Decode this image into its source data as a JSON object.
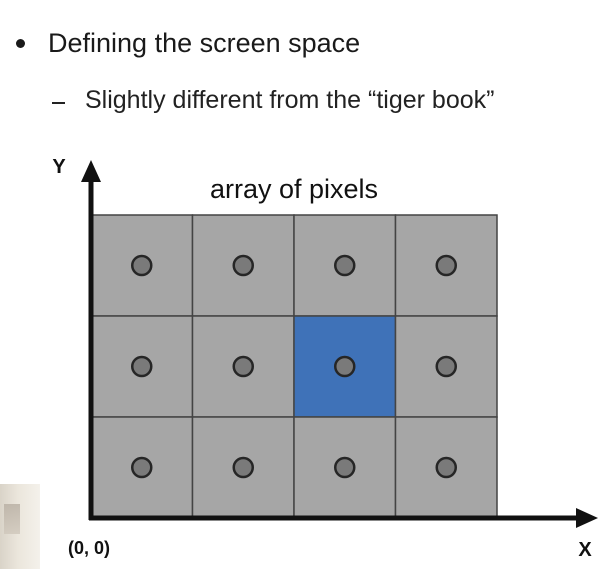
{
  "slide": {
    "bullet_text": "Defining the screen space",
    "sub_bullet_text": "Slightly different from the “tiger book”"
  },
  "diagram": {
    "title": "array of pixels",
    "y_axis_label": "Y",
    "x_axis_label": "X",
    "origin_label": "(0, 0)",
    "rows": 3,
    "cols": 4,
    "highlighted_cell": {
      "row": 1,
      "col": 2
    },
    "colors": {
      "cell_fill": "#a6a6a6",
      "highlight_fill": "#3f72b8",
      "grid_line": "#444444",
      "sample_dot_fill": "#7a7a7a",
      "sample_dot_stroke": "#262626",
      "axis": "#111111"
    }
  }
}
